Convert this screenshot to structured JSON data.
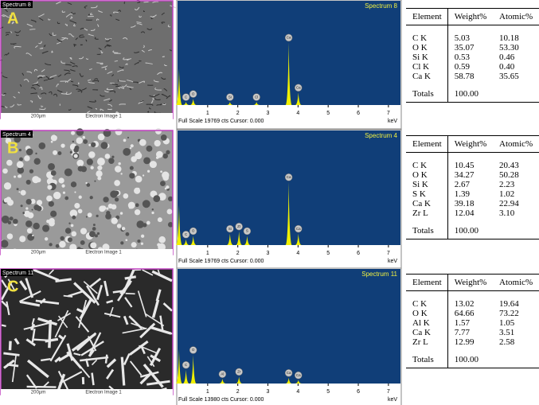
{
  "panels": [
    {
      "letter": "A",
      "image": {
        "spectrum_label": "Spectrum 8",
        "scale": "200µm",
        "caption": "Electron Image 1"
      },
      "spectrum": {
        "title": "Spectrum 8",
        "footer": "Full Scale 19769 cts Cursor: 0.000",
        "unit": "keV",
        "xlim": [
          0,
          7.4
        ],
        "xticks": [
          1,
          2,
          3,
          4,
          5,
          6,
          7
        ],
        "ylim": [
          0,
          100
        ],
        "peaks": [
          {
            "x": 0.05,
            "y": 35
          },
          {
            "x": 0.28,
            "y": 3,
            "label": "C"
          },
          {
            "x": 0.52,
            "y": 6,
            "label": "O"
          },
          {
            "x": 1.74,
            "y": 3,
            "label": "Si"
          },
          {
            "x": 2.62,
            "y": 3,
            "label": "Cl"
          },
          {
            "x": 3.69,
            "y": 60,
            "label": "Ca"
          },
          {
            "x": 4.01,
            "y": 12,
            "label": "Ca"
          }
        ]
      },
      "table": {
        "columns": [
          "Element",
          "Weight%",
          "Atomic%"
        ],
        "rows": [
          [
            "C K",
            "5.03",
            "10.18"
          ],
          [
            "O K",
            "35.07",
            "53.30"
          ],
          [
            "Si K",
            "0.53",
            "0.46"
          ],
          [
            "Cl K",
            "0.59",
            "0.40"
          ],
          [
            "Ca K",
            "58.78",
            "35.65"
          ]
        ],
        "totals": [
          "Totals",
          "100.00"
        ]
      }
    },
    {
      "letter": "B",
      "image": {
        "spectrum_label": "Spectrum 4",
        "scale": "200µm",
        "caption": "Electron Image 1"
      },
      "spectrum": {
        "title": "Spectrum 4",
        "footer": "Full Scale 19769 cts Cursor: 0.000",
        "unit": "keV",
        "xlim": [
          0,
          7.4
        ],
        "xticks": [
          1,
          2,
          3,
          4,
          5,
          6,
          7
        ],
        "ylim": [
          0,
          100
        ],
        "peaks": [
          {
            "x": 0.05,
            "y": 35
          },
          {
            "x": 0.28,
            "y": 5,
            "label": "C"
          },
          {
            "x": 0.52,
            "y": 8,
            "label": "O"
          },
          {
            "x": 1.74,
            "y": 10,
            "label": "Si"
          },
          {
            "x": 2.04,
            "y": 12,
            "label": "Zr"
          },
          {
            "x": 2.31,
            "y": 8,
            "label": "S"
          },
          {
            "x": 3.69,
            "y": 55,
            "label": "Ca"
          },
          {
            "x": 4.01,
            "y": 10,
            "label": "Ca"
          }
        ]
      },
      "table": {
        "columns": [
          "Element",
          "Weight%",
          "Atomic%"
        ],
        "rows": [
          [
            "C K",
            "10.45",
            "20.43"
          ],
          [
            "O K",
            "34.27",
            "50.28"
          ],
          [
            "Si K",
            "2.67",
            "2.23"
          ],
          [
            "S K",
            "1.39",
            "1.02"
          ],
          [
            "Ca K",
            "39.18",
            "22.94"
          ],
          [
            "Zr L",
            "12.04",
            "3.10"
          ]
        ],
        "totals": [
          "Totals",
          "100.00"
        ]
      }
    },
    {
      "letter": "C",
      "image": {
        "spectrum_label": "Spectrum 11",
        "scale": "200µm",
        "caption": "Electron Image 1"
      },
      "spectrum": {
        "title": "Spectrum 11",
        "footer": "Full Scale 13980 cts Cursor: 0.000",
        "unit": "keV",
        "xlim": [
          0,
          7.4
        ],
        "xticks": [
          1,
          2,
          3,
          4,
          5,
          6,
          7
        ],
        "ylim": [
          0,
          100
        ],
        "peaks": [
          {
            "x": 0.05,
            "y": 30
          },
          {
            "x": 0.28,
            "y": 12,
            "label": "C"
          },
          {
            "x": 0.52,
            "y": 25,
            "label": "O"
          },
          {
            "x": 1.49,
            "y": 4,
            "label": "Al"
          },
          {
            "x": 2.04,
            "y": 6,
            "label": "Zr"
          },
          {
            "x": 3.69,
            "y": 5,
            "label": "Ca"
          },
          {
            "x": 4.01,
            "y": 3,
            "label": "Ca"
          }
        ]
      },
      "table": {
        "columns": [
          "Element",
          "Weight%",
          "Atomic%"
        ],
        "rows": [
          [
            "C K",
            "13.02",
            "19.64"
          ],
          [
            "O K",
            "64.66",
            "73.22"
          ],
          [
            "Al K",
            "1.57",
            "1.05"
          ],
          [
            "Ca K",
            "7.77",
            "3.51"
          ],
          [
            "Zr L",
            "12.99",
            "2.58"
          ]
        ],
        "totals": [
          "Totals",
          "100.00"
        ]
      }
    }
  ]
}
